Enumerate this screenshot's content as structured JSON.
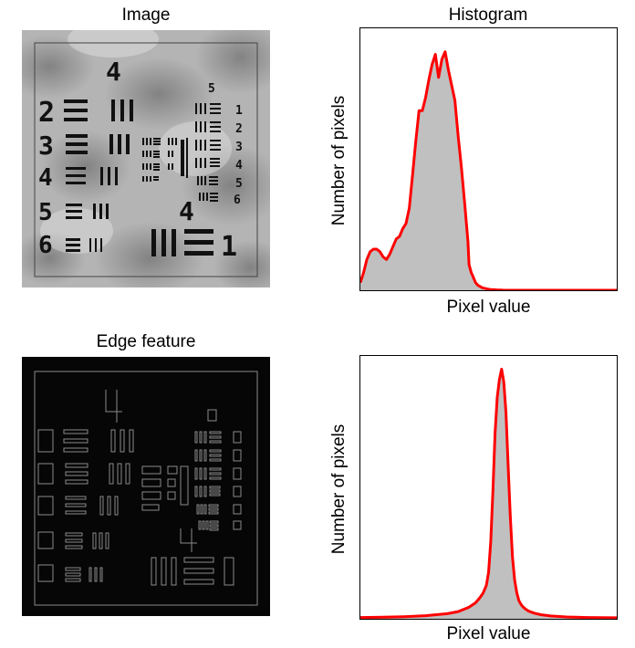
{
  "panels": {
    "image_title": "Image",
    "edge_title": "Edge feature",
    "hist_top_title": "Histogram"
  },
  "target": {
    "digits": [
      "4",
      "2",
      "3",
      "4",
      "5",
      "6",
      "5",
      "1",
      "2",
      "3",
      "4",
      "5",
      "6",
      "4",
      "1"
    ]
  },
  "chart_data": [
    {
      "type": "area",
      "title": "Histogram",
      "xlabel": "Pixel value",
      "ylabel": "Number of pixels",
      "x": [
        0,
        3,
        6,
        9,
        12,
        15,
        18,
        21,
        24,
        27,
        30,
        33,
        36,
        39,
        42,
        45,
        48,
        51,
        54,
        57,
        60,
        63,
        66,
        69,
        72,
        75,
        78,
        81,
        84,
        87,
        90,
        93,
        96,
        99,
        100,
        102,
        104,
        106,
        108,
        110,
        112,
        114,
        116,
        118,
        120,
        123,
        126,
        129,
        132,
        135,
        138,
        141,
        144,
        147,
        150,
        153,
        156,
        159,
        162,
        165,
        170,
        175,
        180,
        190,
        200,
        210,
        220,
        236
      ],
      "y": [
        0.03,
        0.07,
        0.12,
        0.15,
        0.16,
        0.16,
        0.15,
        0.13,
        0.12,
        0.14,
        0.17,
        0.2,
        0.21,
        0.24,
        0.26,
        0.32,
        0.45,
        0.58,
        0.7,
        0.7,
        0.75,
        0.82,
        0.88,
        0.92,
        0.83,
        0.9,
        0.93,
        0.86,
        0.8,
        0.74,
        0.6,
        0.48,
        0.34,
        0.19,
        0.1,
        0.07,
        0.05,
        0.03,
        0.02,
        0.015,
        0.01,
        0.008,
        0.006,
        0.004,
        0.003,
        0.002,
        0.001,
        0.001,
        0,
        0,
        0,
        0,
        0,
        0,
        0,
        0,
        0,
        0,
        0,
        0,
        0,
        0,
        0,
        0,
        0,
        0,
        0,
        0
      ],
      "xlim": [
        0,
        236
      ],
      "ylim": [
        0,
        1.0
      ],
      "fill_color": "#c0c0c0",
      "line_color": "#ff0000"
    },
    {
      "type": "area",
      "title": "",
      "xlabel": "Pixel value",
      "ylabel": "Number of pixels",
      "x": [
        0,
        20,
        40,
        60,
        80,
        90,
        100,
        106,
        110,
        113,
        116,
        118,
        120,
        122,
        124,
        126,
        128,
        130,
        132,
        134,
        136,
        138,
        140,
        142,
        144,
        146,
        148,
        150,
        152,
        154,
        156,
        160,
        166,
        175,
        190,
        210,
        236
      ],
      "y": [
        0.005,
        0.006,
        0.008,
        0.012,
        0.02,
        0.028,
        0.045,
        0.062,
        0.082,
        0.1,
        0.13,
        0.18,
        0.3,
        0.5,
        0.72,
        0.86,
        0.93,
        0.97,
        0.92,
        0.8,
        0.6,
        0.4,
        0.24,
        0.15,
        0.1,
        0.07,
        0.055,
        0.045,
        0.038,
        0.032,
        0.028,
        0.022,
        0.016,
        0.011,
        0.007,
        0.005,
        0.004
      ],
      "xlim": [
        0,
        236
      ],
      "ylim": [
        0,
        1.0
      ],
      "fill_color": "#c0c0c0",
      "line_color": "#ff0000"
    }
  ]
}
